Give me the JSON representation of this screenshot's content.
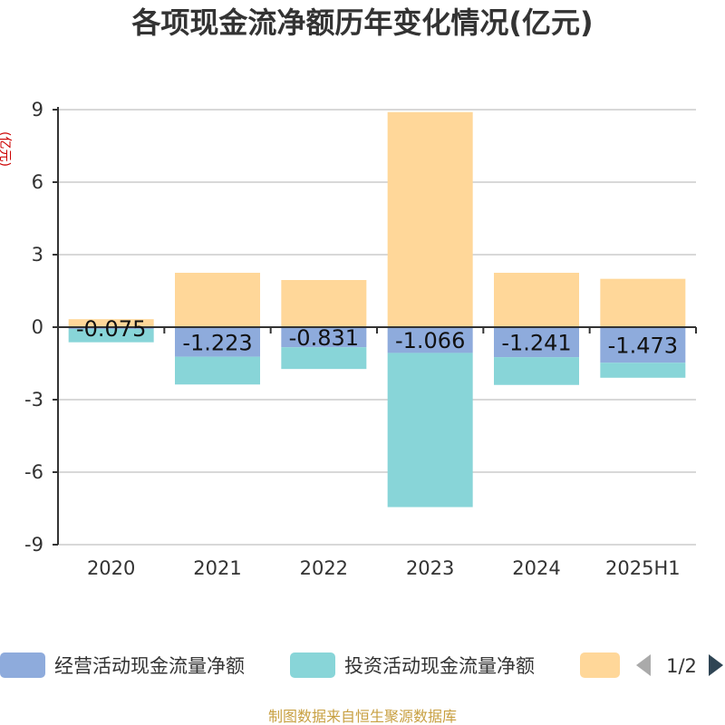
{
  "chart_data": {
    "type": "bar",
    "stacked": true,
    "title": "各项现金流净额历年变化情况(亿元)",
    "ylabel": "(亿元)",
    "categories": [
      "2020",
      "2021",
      "2022",
      "2023",
      "2024",
      "2025H1"
    ],
    "ylim": [
      -9,
      9
    ],
    "yticks": [
      9,
      6,
      3,
      0,
      -3,
      -6,
      -9
    ],
    "grid": true,
    "series": [
      {
        "name": "经营活动现金流量净额",
        "color": "#8eabdc",
        "values": [
          -0.075,
          -1.223,
          -0.831,
          -1.066,
          -1.241,
          -1.473
        ],
        "labels": [
          "-0.075",
          "-1.223",
          "-0.831",
          "-1.066",
          "-1.241",
          "-1.473"
        ]
      },
      {
        "name": "投资活动现金流量净额",
        "color": "#88d5d8",
        "values": [
          -0.55,
          -1.15,
          -0.9,
          -6.38,
          -1.15,
          -0.62
        ]
      },
      {
        "name": "",
        "color": "#ffd799",
        "values": [
          0.33,
          2.25,
          1.95,
          8.9,
          2.25,
          2.0
        ]
      }
    ],
    "legend": {
      "position": "bottom",
      "page": "1/2"
    }
  },
  "source": "制图数据来自恒生聚源数据库",
  "colors": {
    "title": "#333333",
    "unit": "#cc0000",
    "source": "#c8a042",
    "arrow_disabled": "#aaaaaa",
    "arrow_active": "#2f4554"
  }
}
